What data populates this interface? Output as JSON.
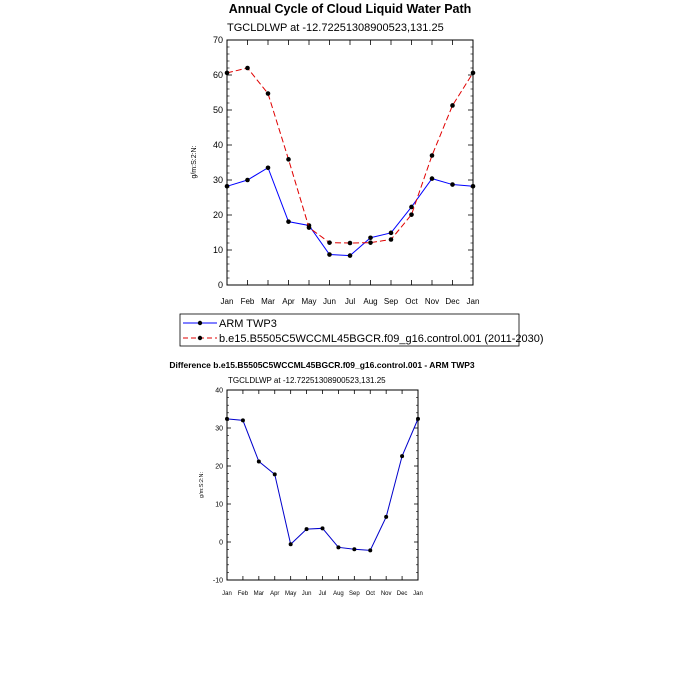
{
  "chart_data": [
    {
      "type": "line",
      "title": "Annual Cycle of Cloud Liquid Water Path",
      "subtitle": "TGCLDLWP at -12.72251308900523,131.25",
      "ylabel": "g/m:S:2:N:",
      "ylim": [
        0,
        70
      ],
      "yticks": [
        "0",
        "10",
        "20",
        "30",
        "40",
        "50",
        "60",
        "70"
      ],
      "categories": [
        "Jan",
        "Feb",
        "Mar",
        "Apr",
        "May",
        "Jun",
        "Jul",
        "Aug",
        "Sep",
        "Oct",
        "Nov",
        "Dec",
        "Jan"
      ],
      "series": [
        {
          "name": "ARM TWP3",
          "color": "#0000ff",
          "dash": "solid",
          "values": [
            28.2,
            30.0,
            33.5,
            18.1,
            17.0,
            8.7,
            8.4,
            13.5,
            14.9,
            22.3,
            30.4,
            28.7,
            28.2
          ]
        },
        {
          "name": "b.e15.B5505C5WCCML45BGCR.f09_g16.control.001 (2011-2030)",
          "color": "#e00000",
          "dash": "dashed",
          "values": [
            60.6,
            62.0,
            54.7,
            35.9,
            16.4,
            12.1,
            12.0,
            12.1,
            13.0,
            20.1,
            37.0,
            51.3,
            60.6
          ]
        }
      ],
      "legend": "below"
    },
    {
      "type": "line",
      "title": "Difference b.e15.B5505C5WCCML45BGCR.f09_g16.control.001 - ARM TWP3",
      "subtitle": "TGCLDLWP at -12.72251308900523,131.25",
      "ylabel": "g/m:S:2:N:",
      "ylim": [
        -10,
        40
      ],
      "yticks": [
        "-10",
        "0",
        "10",
        "20",
        "30",
        "40"
      ],
      "categories": [
        "Jan",
        "Feb",
        "Mar",
        "Apr",
        "May",
        "Jun",
        "Jul",
        "Aug",
        "Sep",
        "Oct",
        "Nov",
        "Dec",
        "Jan"
      ],
      "series": [
        {
          "name": "Difference",
          "color": "#0000cc",
          "dash": "solid",
          "values": [
            32.4,
            32.0,
            21.2,
            17.8,
            -0.6,
            3.4,
            3.6,
            -1.4,
            -1.9,
            -2.2,
            6.6,
            22.6,
            32.4
          ]
        }
      ]
    }
  ]
}
